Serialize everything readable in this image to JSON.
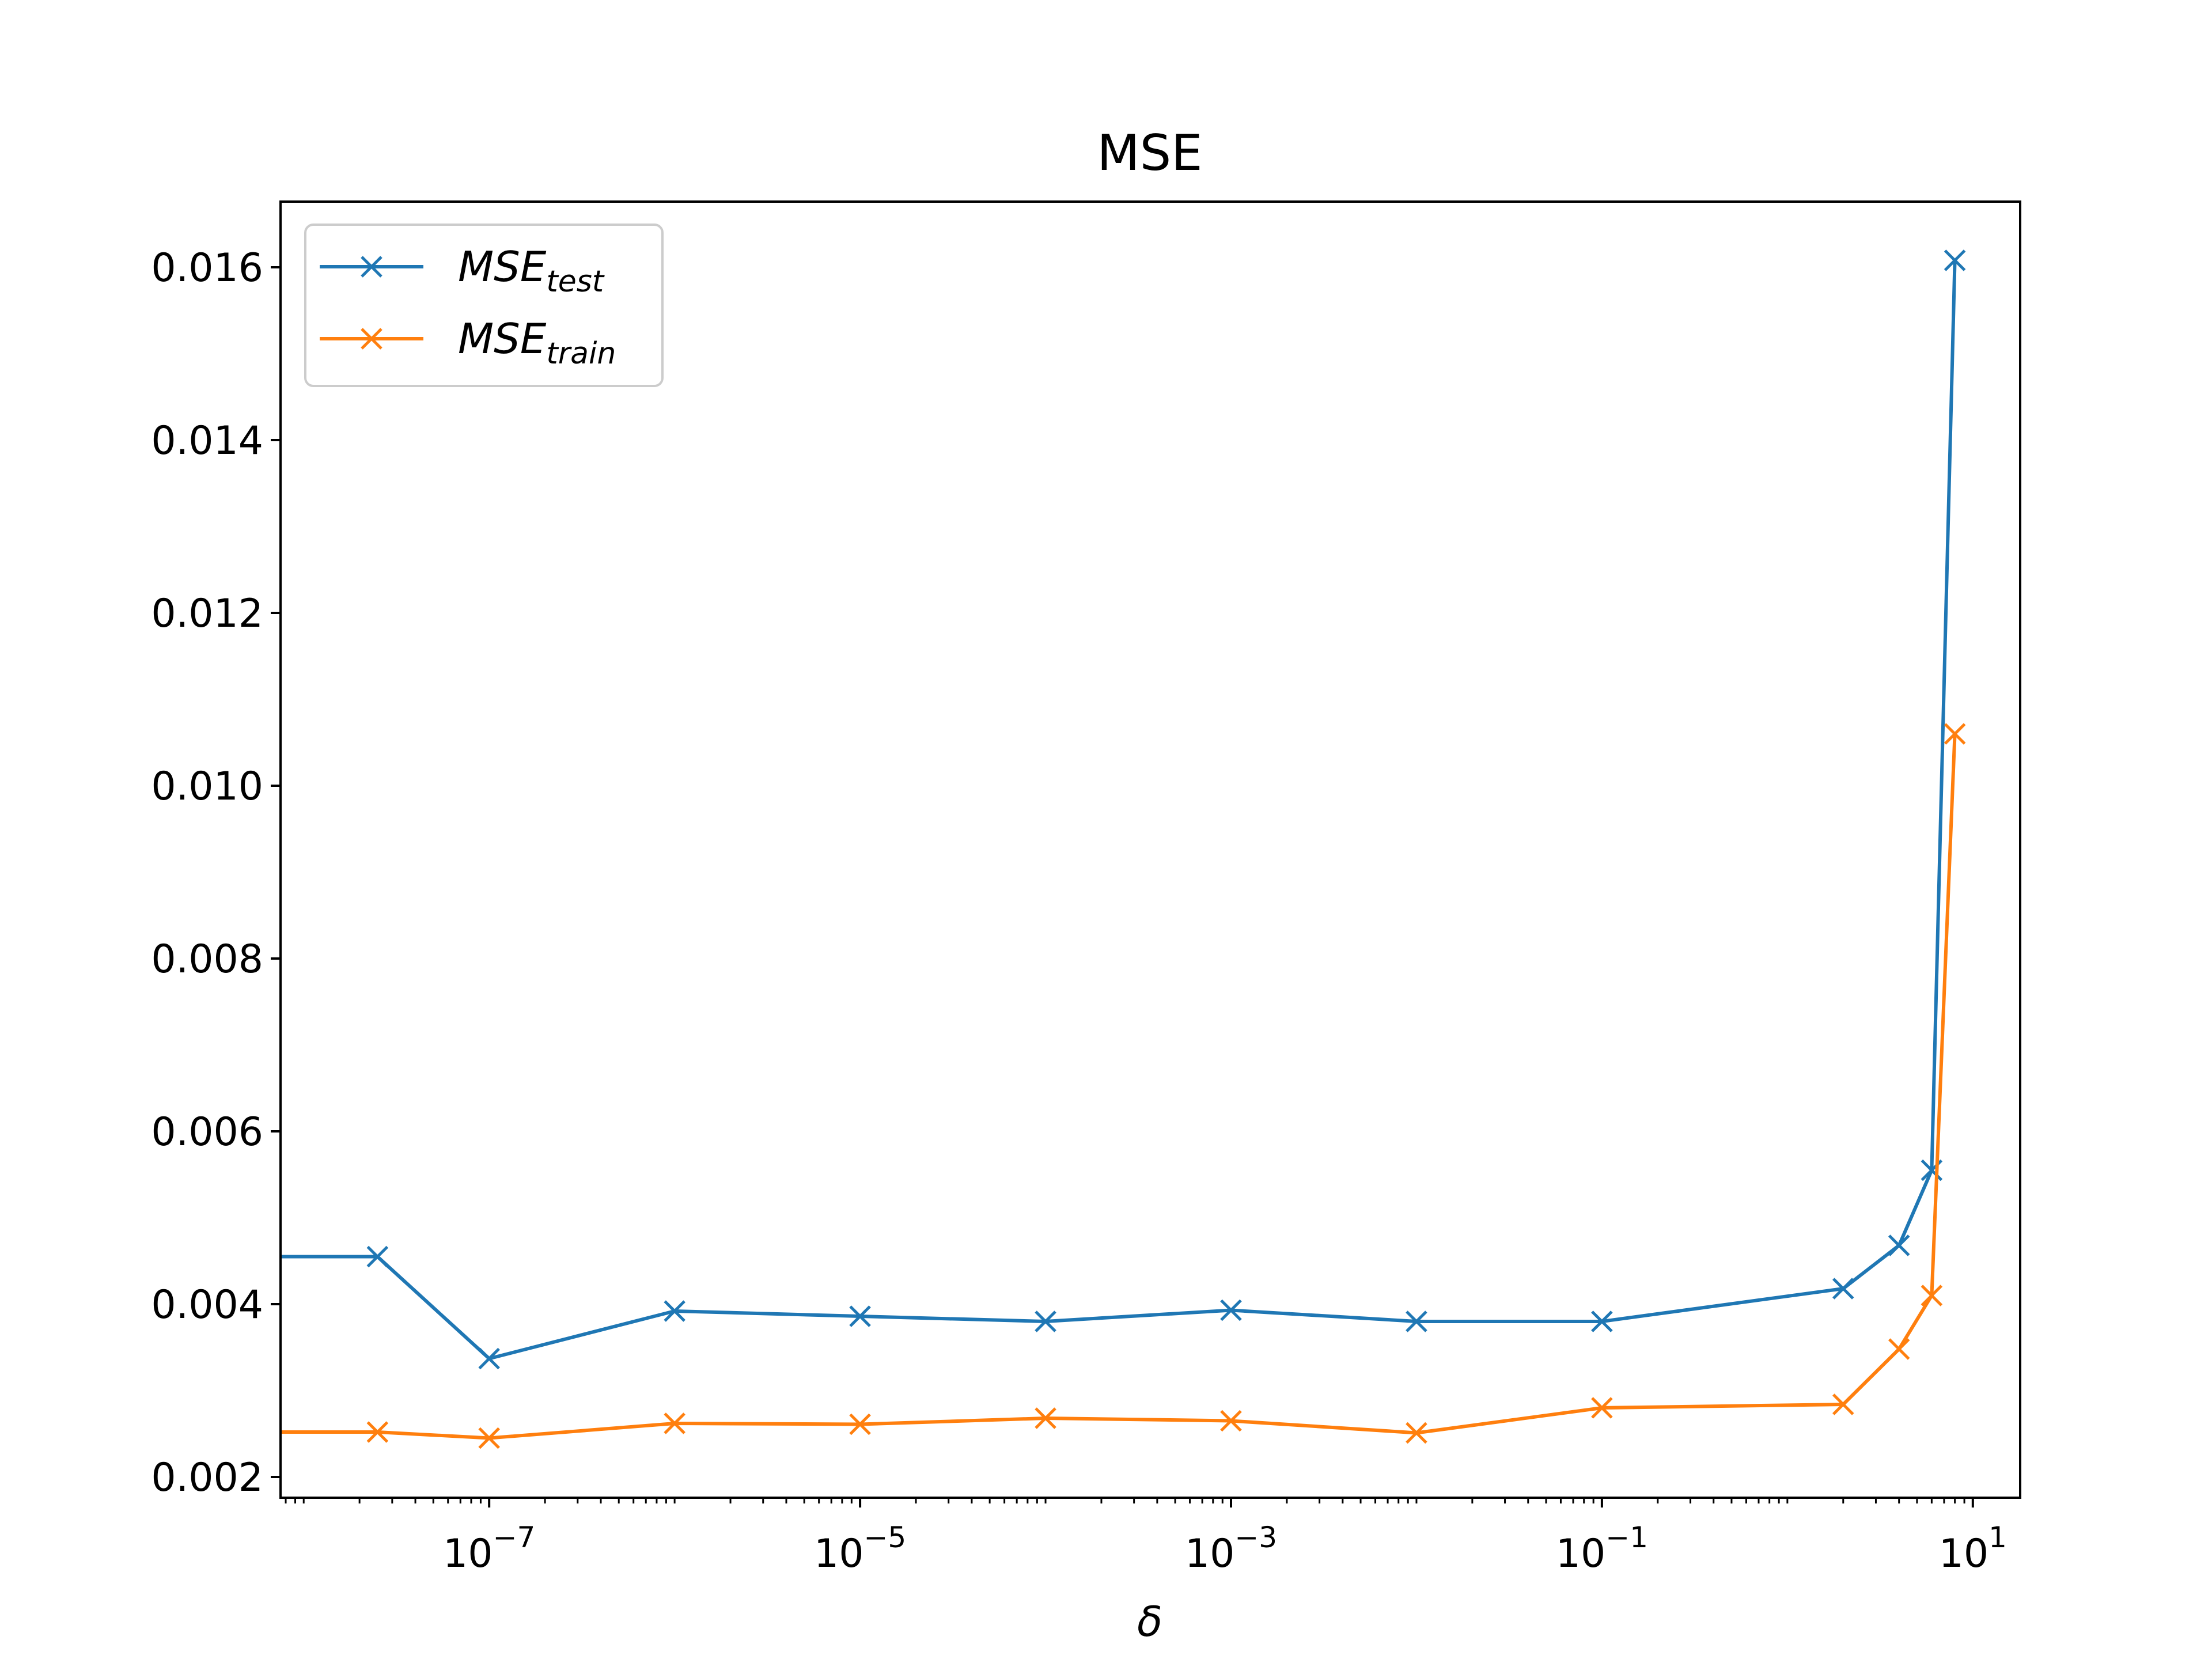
{
  "chart_data": {
    "type": "line",
    "title": "MSE",
    "xlabel": "δ",
    "ylabel": "",
    "xscale": "log",
    "xlim": [
      7.5e-09,
      18
    ],
    "ylim": [
      0.00176,
      0.01676
    ],
    "x_ticks": [
      {
        "value": 1e-07,
        "base": "10",
        "exp": "−7"
      },
      {
        "value": 1e-05,
        "base": "10",
        "exp": "−5"
      },
      {
        "value": 0.001,
        "base": "10",
        "exp": "−3"
      },
      {
        "value": 0.1,
        "base": "10",
        "exp": "−1"
      },
      {
        "value": 10,
        "base": "10",
        "exp": "1"
      }
    ],
    "y_ticks": [
      {
        "value": 0.002,
        "label": "0.002"
      },
      {
        "value": 0.004,
        "label": "0.004"
      },
      {
        "value": 0.006,
        "label": "0.006"
      },
      {
        "value": 0.008,
        "label": "0.008"
      },
      {
        "value": 0.01,
        "label": "0.010"
      },
      {
        "value": 0.012,
        "label": "0.012"
      },
      {
        "value": 0.014,
        "label": "0.014"
      },
      {
        "value": 0.016,
        "label": "0.016"
      }
    ],
    "grid": false,
    "legend_position": "top-left",
    "x": [
      5e-09,
      2.5e-08,
      1e-07,
      1e-06,
      1e-05,
      0.0001,
      0.001,
      0.01,
      0.1,
      2,
      4,
      6,
      8
    ],
    "series": [
      {
        "name": "MSE",
        "name_sub": "test",
        "color": "#1f77b4",
        "marker": "x",
        "values": [
          0.00455,
          0.00455,
          0.00337,
          0.00392,
          0.00386,
          0.0038,
          0.00393,
          0.0038,
          0.0038,
          0.00418,
          0.00468,
          0.00555,
          0.01608
        ]
      },
      {
        "name": "MSE",
        "name_sub": "train",
        "color": "#ff7f0e",
        "marker": "x",
        "values": [
          0.00252,
          0.00252,
          0.00245,
          0.00262,
          0.00261,
          0.00268,
          0.00265,
          0.00251,
          0.0028,
          0.00284,
          0.00348,
          0.0041,
          0.0106
        ]
      }
    ]
  }
}
